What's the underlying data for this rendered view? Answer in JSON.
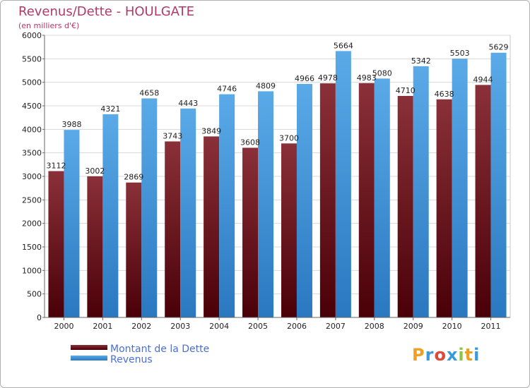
{
  "header": {
    "title": "Revenus/Dette - HOULGATE",
    "subtitle": "(en milliers d'€)"
  },
  "legend": {
    "debt_label": "Montant de la Dette",
    "revenue_label": "Revenus"
  },
  "logo": {
    "text": "Proxiti",
    "letters": [
      "P",
      "r",
      "o",
      "x",
      "i",
      "t",
      "i"
    ],
    "colors": [
      "#f0a020",
      "#3a9ad9",
      "#e0483a",
      "#3a9ad9",
      "#8cc63f",
      "#f0a020",
      "#3a9ad9"
    ]
  },
  "colors": {
    "debt_top": "#8a3038",
    "debt_bottom": "#4a0008",
    "revenue_top": "#5aaae8",
    "revenue_bottom": "#2a78c0",
    "grid": "#d8d8d8",
    "title": "#b03a66",
    "legend_text": "#4a6fd8"
  },
  "chart_data": {
    "type": "bar",
    "title": "Revenus/Dette - HOULGATE",
    "subtitle": "(en milliers d'€)",
    "xlabel": "",
    "ylabel": "",
    "ylim": [
      0,
      6000
    ],
    "y_ticks": [
      0,
      500,
      1000,
      1500,
      2000,
      2500,
      3000,
      3500,
      4000,
      4500,
      5000,
      5500,
      6000
    ],
    "grid": true,
    "legend_position": "bottom-left",
    "categories": [
      "2000",
      "2001",
      "2002",
      "2003",
      "2004",
      "2005",
      "2006",
      "2007",
      "2008",
      "2009",
      "2010",
      "2011"
    ],
    "series": [
      {
        "name": "Montant de la Dette",
        "values": [
          3112,
          3002,
          2869,
          3743,
          3849,
          3608,
          3700,
          4978,
          4983,
          4710,
          4638,
          4944
        ]
      },
      {
        "name": "Revenus",
        "values": [
          3988,
          4321,
          4658,
          4443,
          4746,
          4809,
          4966,
          5664,
          5080,
          5342,
          5503,
          5629
        ]
      }
    ]
  }
}
